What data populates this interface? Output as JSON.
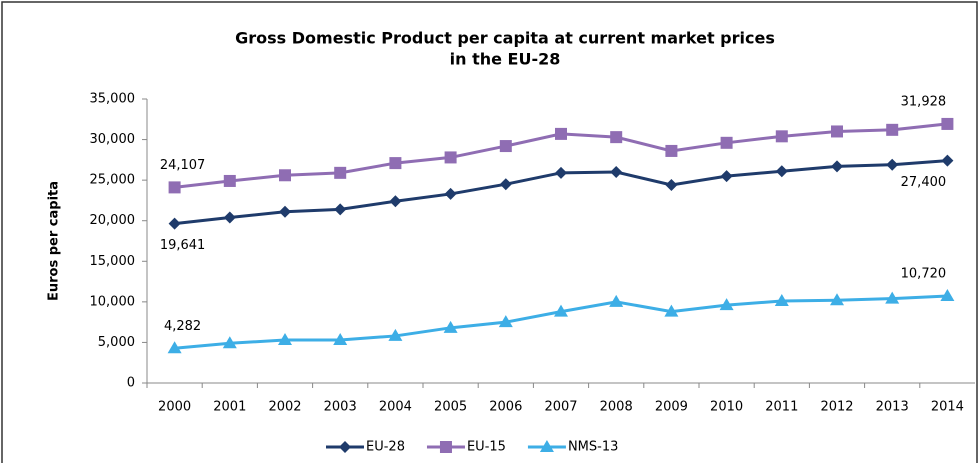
{
  "chart_data": {
    "type": "line",
    "title": "Gross Domestic Product per capita at current market prices",
    "subtitle": "in the EU-28",
    "ylabel": "Euros per capita",
    "categories": [
      "2000",
      "2001",
      "2002",
      "2003",
      "2004",
      "2005",
      "2006",
      "2007",
      "2008",
      "2009",
      "2010",
      "2011",
      "2012",
      "2013",
      "2014"
    ],
    "series": [
      {
        "name": "EU-28",
        "color": "#1f3b6b",
        "marker": "diamond",
        "values": [
          19641,
          20400,
          21100,
          21400,
          22400,
          23300,
          24500,
          25900,
          26000,
          24400,
          25500,
          26100,
          26700,
          26900,
          27400
        ],
        "value_labels": [
          "19,641",
          null,
          null,
          null,
          null,
          null,
          null,
          null,
          null,
          null,
          null,
          null,
          null,
          null,
          "27,400"
        ]
      },
      {
        "name": "EU-15",
        "color": "#8f6db3",
        "marker": "square",
        "values": [
          24107,
          24900,
          25600,
          25900,
          27100,
          27800,
          29200,
          30700,
          30300,
          28600,
          29600,
          30400,
          31000,
          31200,
          31928
        ],
        "value_labels": [
          "24,107",
          null,
          null,
          null,
          null,
          null,
          null,
          null,
          null,
          null,
          null,
          null,
          null,
          null,
          "31,928"
        ]
      },
      {
        "name": "NMS-13",
        "color": "#3daee6",
        "marker": "triangle",
        "values": [
          4282,
          4900,
          5300,
          5300,
          5800,
          6800,
          7500,
          8800,
          10000,
          8800,
          9600,
          10100,
          10200,
          10400,
          10720
        ],
        "value_labels": [
          "4,282",
          null,
          null,
          null,
          null,
          null,
          null,
          null,
          null,
          null,
          null,
          null,
          null,
          null,
          "10,720"
        ]
      }
    ],
    "ylim": [
      0,
      35000
    ],
    "yticks": [
      0,
      {
        "value": 5000,
        "label": "5,000"
      },
      {
        "value": 10000,
        "label": "10,000"
      },
      {
        "value": 15000,
        "label": "15,000"
      },
      {
        "value": 20000,
        "label": "20,000"
      },
      {
        "value": 25000,
        "label": "25,000"
      },
      {
        "value": 30000,
        "label": "30,000"
      },
      {
        "value": 35000,
        "label": "35,000"
      }
    ],
    "legend": "bottom"
  }
}
